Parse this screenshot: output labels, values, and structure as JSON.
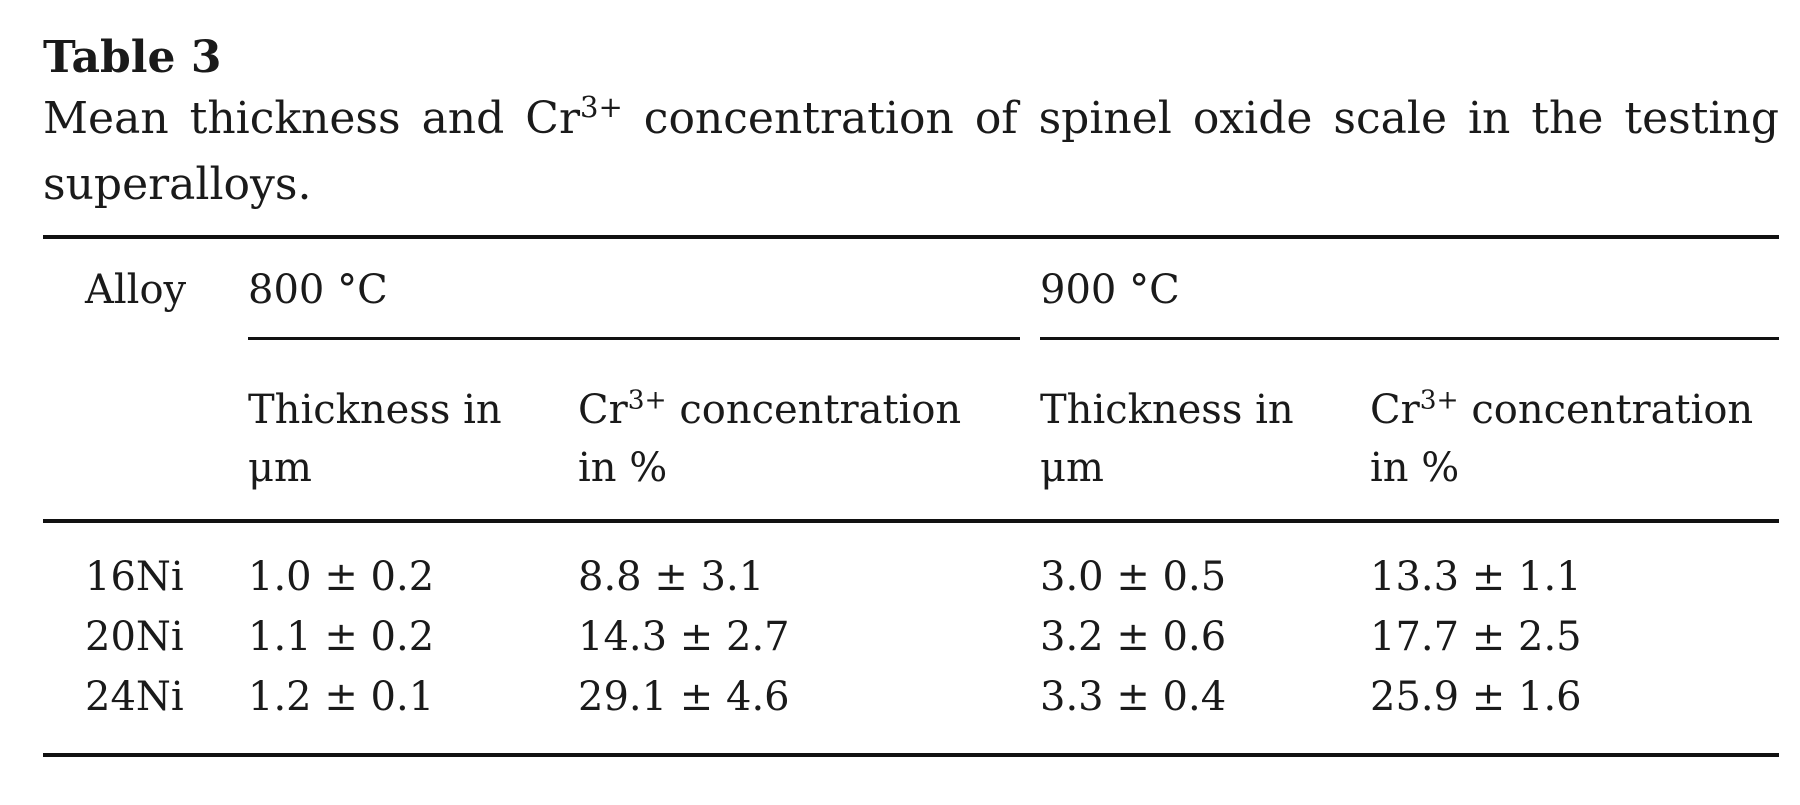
{
  "table": {
    "label": "Table 3",
    "caption_part1": "Mean thickness and Cr",
    "caption_sup": "3+",
    "caption_part2": " concentration of spinel oxide scale in the testing",
    "caption_part3": "superalloys.",
    "header": {
      "alloy": "Alloy",
      "temp1": "800 °C",
      "temp2": "900 °C",
      "thickness_line1": "Thickness in",
      "thickness_line2": "μm",
      "conc_prefix": "Cr",
      "conc_sup": "3+",
      "conc_line1_rest": " concentration",
      "conc_line2": "in %"
    },
    "rows": [
      {
        "alloy": "16Ni",
        "t800": "1.0  ±  0.2",
        "c800": "8.8  ±  3.1",
        "t900": "3.0  ±  0.5",
        "c900": "13.3  ±  1.1"
      },
      {
        "alloy": "20Ni",
        "t800": "1.1  ±  0.2",
        "c800": "14.3  ±  2.7",
        "t900": "3.2  ±  0.6",
        "c900": "17.7  ±  2.5"
      },
      {
        "alloy": "24Ni",
        "t800": "1.2  ±  0.1",
        "c800": "29.1  ±  4.6",
        "t900": "3.3  ±  0.4",
        "c900": "25.9  ±  1.6"
      }
    ]
  }
}
